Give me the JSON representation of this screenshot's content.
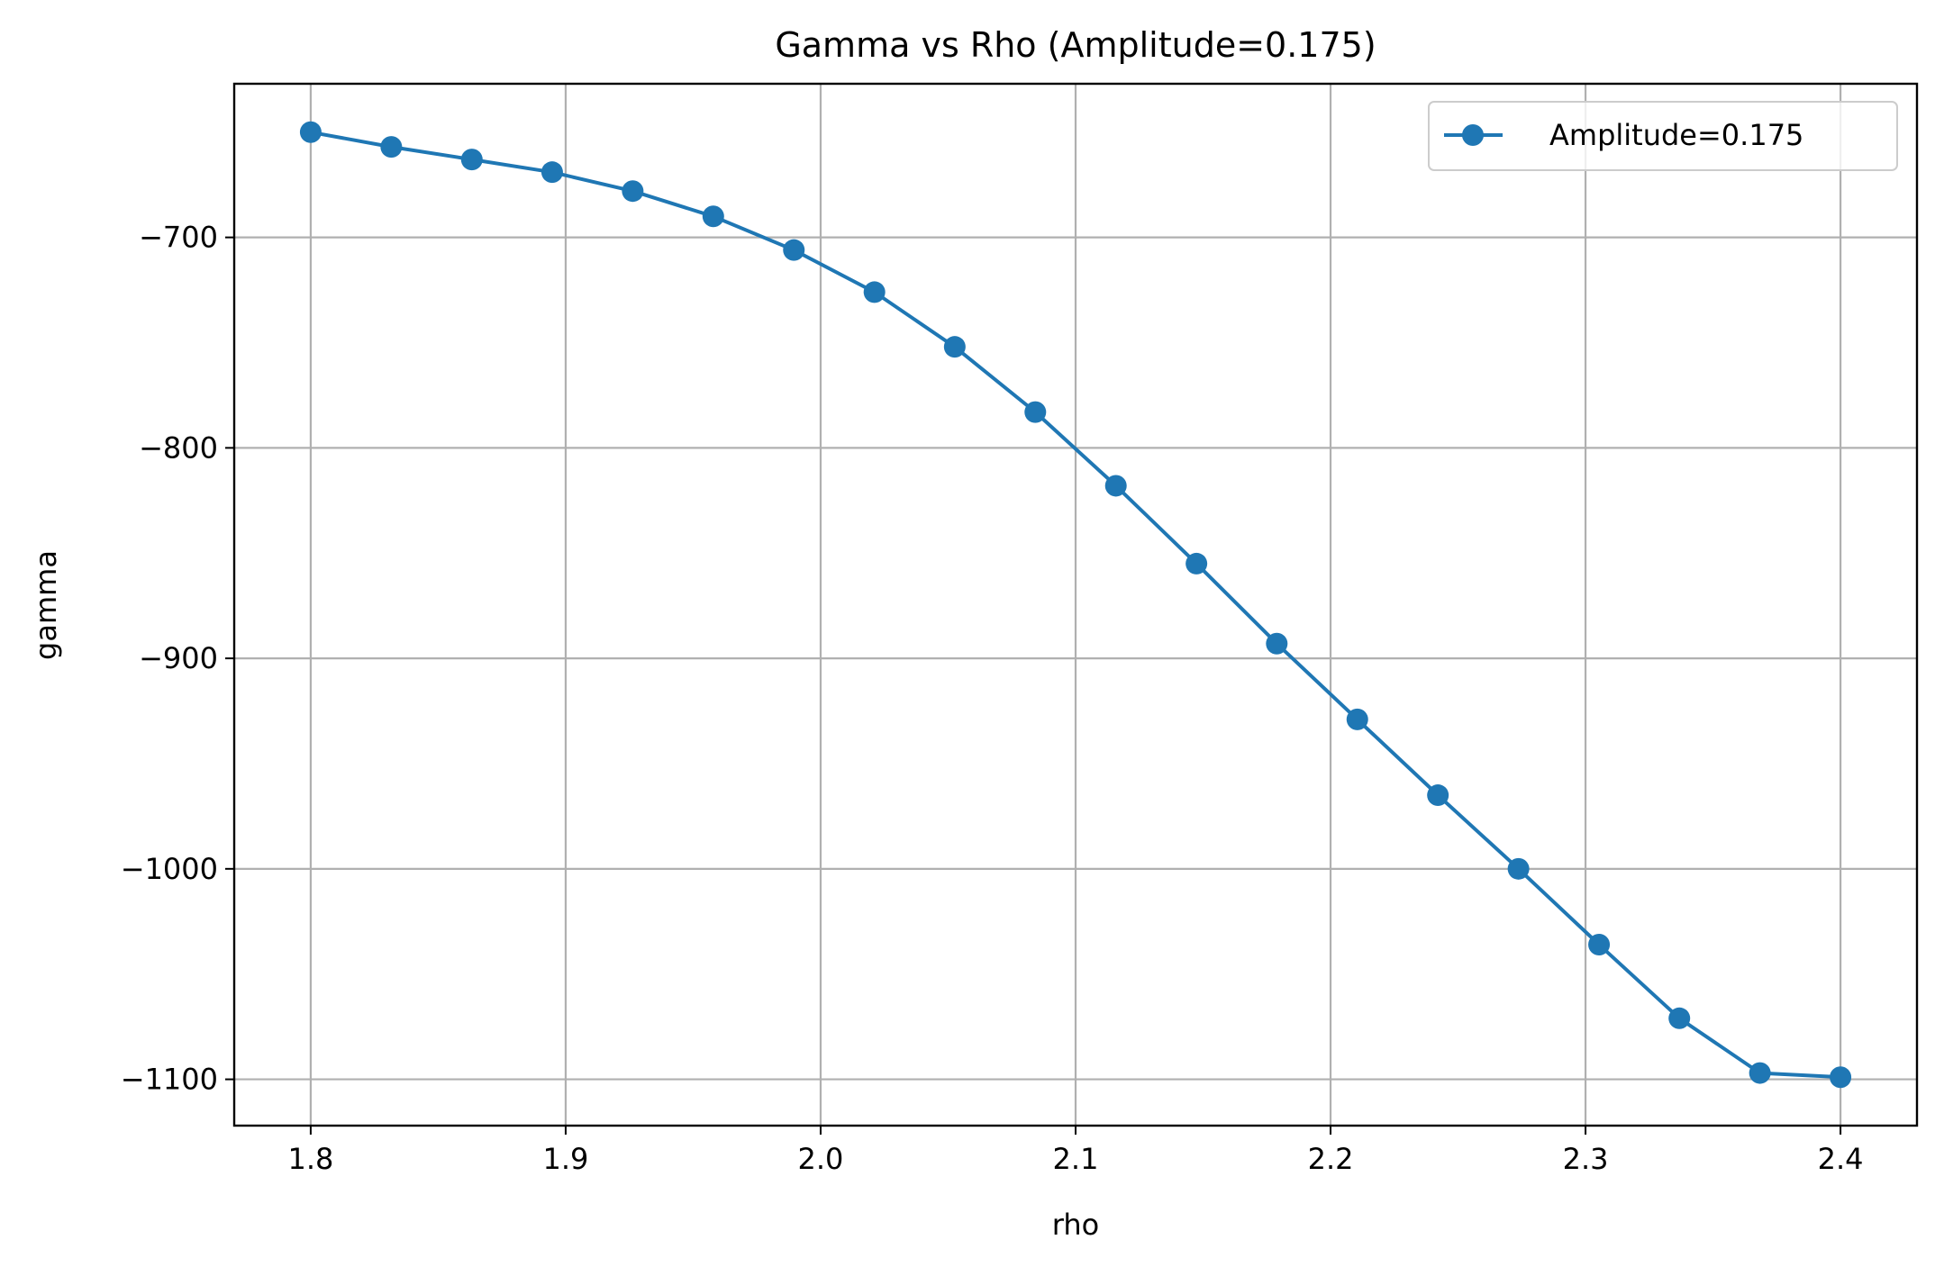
{
  "chart_data": {
    "type": "line",
    "title": "Gamma vs Rho (Amplitude=0.175)",
    "xlabel": "rho",
    "ylabel": "gamma",
    "xlim": [
      1.77,
      2.43
    ],
    "ylim": [
      -1122,
      -627
    ],
    "xticks": [
      1.8,
      1.9,
      2.0,
      2.1,
      2.2,
      2.3,
      2.4
    ],
    "xtick_labels": [
      "1.8",
      "1.9",
      "2.0",
      "2.1",
      "2.2",
      "2.3",
      "2.4"
    ],
    "yticks": [
      -700,
      -800,
      -900,
      -1000,
      -1100
    ],
    "ytick_labels": [
      "−700",
      "−800",
      "−900",
      "−1000",
      "−1100"
    ],
    "grid": true,
    "legend_position": "top-right",
    "series": [
      {
        "name": "Amplitude=0.175",
        "color": "#1f77b4",
        "marker": "circle",
        "x": [
          1.8,
          1.8316,
          1.8632,
          1.8947,
          1.9263,
          1.9579,
          1.9895,
          2.0211,
          2.0526,
          2.0842,
          2.1158,
          2.1474,
          2.1789,
          2.2105,
          2.2421,
          2.2737,
          2.3053,
          2.3368,
          2.3684,
          2.4
        ],
        "y": [
          -650,
          -657,
          -663,
          -669,
          -678,
          -690,
          -706,
          -726,
          -752,
          -783,
          -818,
          -855,
          -893,
          -929,
          -965,
          -1000,
          -1036,
          -1071,
          -1097,
          -1099
        ]
      }
    ]
  }
}
